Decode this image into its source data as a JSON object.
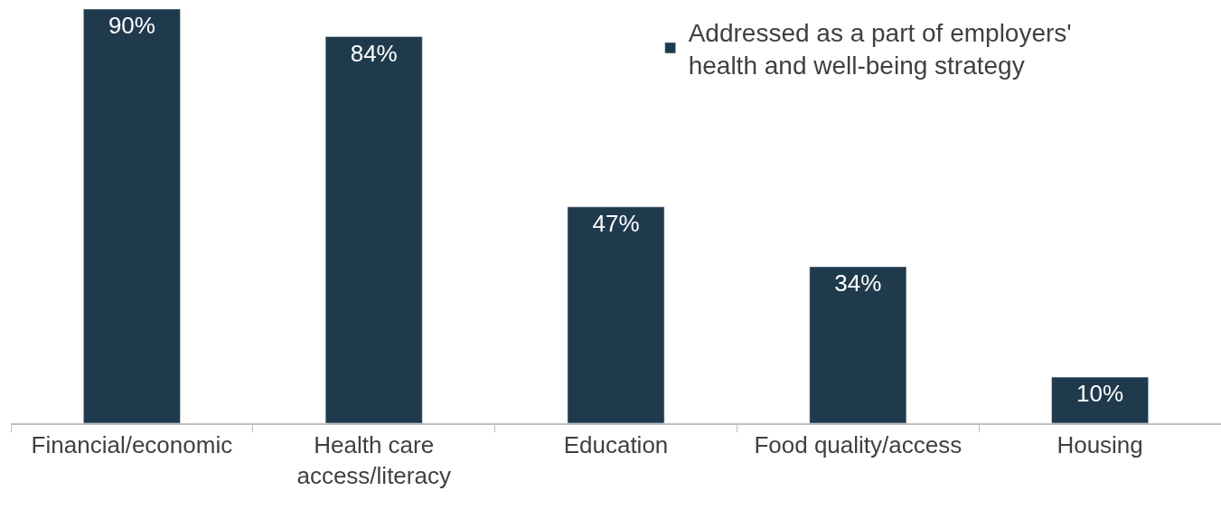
{
  "chart_data": {
    "type": "bar",
    "categories": [
      "Financial/economic",
      "Health care access/literacy",
      "Education",
      "Food quality/access",
      "Housing"
    ],
    "series": [
      {
        "name": "Addressed as a part of employers' health and well-being strategy",
        "color": "#1f3a4d",
        "values": [
          90,
          84,
          47,
          34,
          10
        ],
        "value_labels": [
          "90%",
          "84%",
          "47%",
          "34%",
          "10%"
        ]
      }
    ],
    "ylim": [
      0,
      90
    ],
    "tick_labels": "x",
    "legend": "top right"
  }
}
